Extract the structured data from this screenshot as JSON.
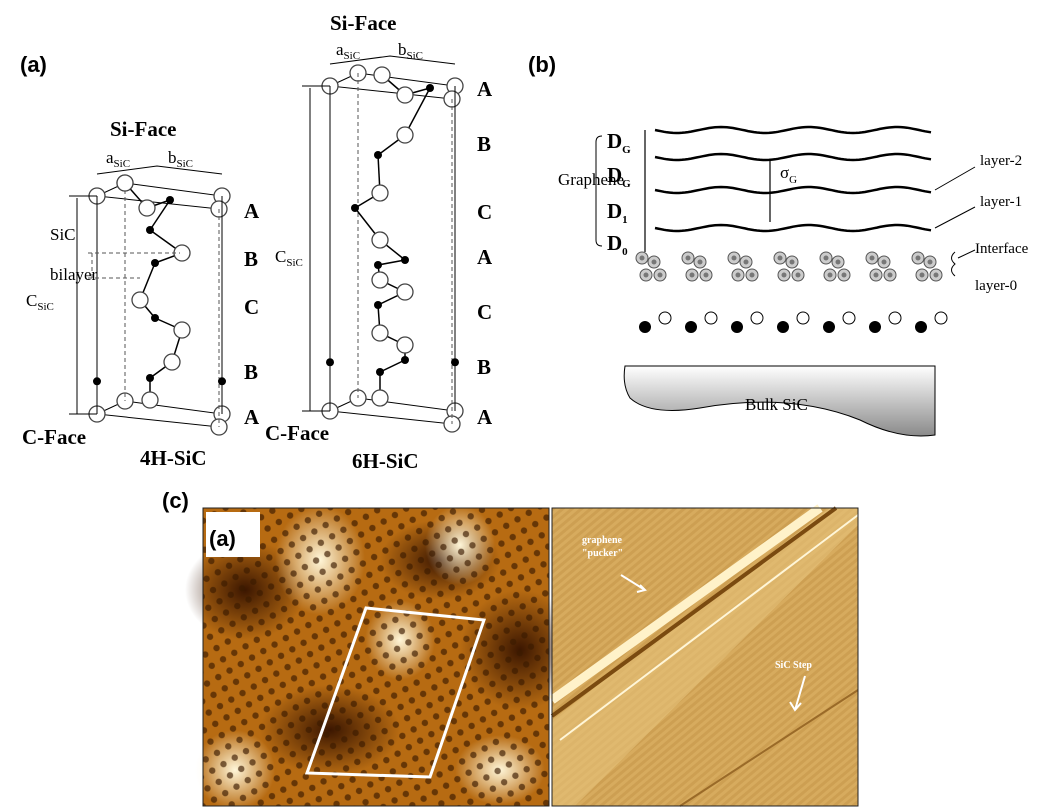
{
  "panel_a": {
    "label": "(a)",
    "cell_4h": {
      "face_top": "Si-Face",
      "a": "a",
      "a_sub": "SiC",
      "b": "b",
      "b_sub": "SiC",
      "stacking": [
        "A",
        "B",
        "C",
        "B",
        "A"
      ],
      "sic": "SiC",
      "bilayer": "bilayer",
      "c": "C",
      "c_sub": "SiC",
      "face_bottom": "C-Face",
      "name": "4H-SiC"
    },
    "cell_6h": {
      "face_top": "Si-Face",
      "a": "a",
      "a_sub": "SiC",
      "b": "b",
      "b_sub": "SiC",
      "stacking": [
        "A",
        "B",
        "C",
        "A",
        "C",
        "B",
        "A"
      ],
      "c": "C",
      "c_sub": "SiC",
      "face_bottom": "C-Face",
      "name": "6H-SiC"
    }
  },
  "panel_b": {
    "label": "(b)",
    "graphene": "Graphene",
    "spacings": [
      {
        "main": "D",
        "sub": "G"
      },
      {
        "main": "D",
        "sub": "G"
      },
      {
        "main": "D",
        "sub": "1"
      },
      {
        "main": "D",
        "sub": "0"
      }
    ],
    "sigma": {
      "main": "σ",
      "sub": "G"
    },
    "layers": [
      "layer-2",
      "layer-1",
      "Interface",
      "layer-0"
    ],
    "bulk": "Bulk SiC"
  },
  "panel_c": {
    "label": "(c)",
    "inset_label": "(a)",
    "pucker_1": "graphene",
    "pucker_2": "\"pucker\"",
    "step": "SiC Step"
  }
}
